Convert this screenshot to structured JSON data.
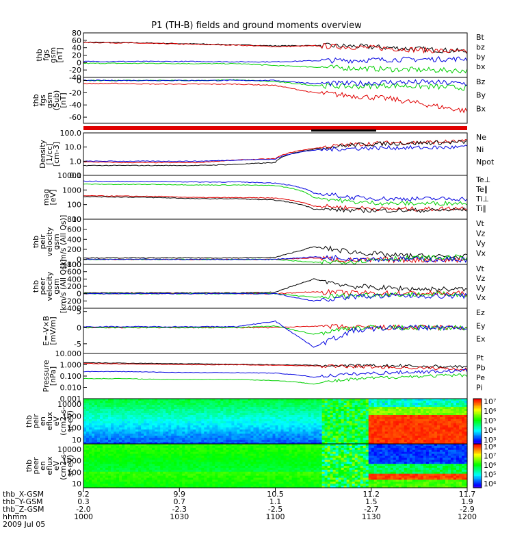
{
  "title": "P1 (TH-B) fields and ground moments overview",
  "colors": {
    "black": "#000000",
    "red": "#e00000",
    "green": "#00d000",
    "blue": "#0000e0"
  },
  "chart_data": [
    {
      "id": "fgs",
      "type": "line",
      "ylabel": [
        "thb",
        "fgs",
        "gsm",
        "[nT]"
      ],
      "yticks": [
        "80",
        "60",
        "40",
        "20",
        "0",
        "-20",
        "-40"
      ],
      "ylim": [
        -40,
        80
      ],
      "log": false,
      "series": [
        {
          "name": "Bt",
          "color": "black",
          "values": [
            55,
            54,
            52,
            50,
            48,
            45,
            46,
            44,
            40,
            35,
            30
          ]
        },
        {
          "name": "bz",
          "color": "red",
          "values": [
            54,
            53,
            51,
            49,
            47,
            43,
            45,
            42,
            38,
            33,
            28
          ]
        },
        {
          "name": "by",
          "color": "green",
          "values": [
            -2,
            -2,
            -2,
            -3,
            -3,
            -8,
            -12,
            -15,
            -18,
            -20,
            -22
          ]
        },
        {
          "name": "bx",
          "color": "blue",
          "values": [
            3,
            3,
            3,
            3,
            2,
            2,
            5,
            6,
            8,
            9,
            10
          ]
        }
      ]
    },
    {
      "id": "fgs_sm",
      "type": "line",
      "ylabel": [
        "thb",
        "fgs",
        "gsm",
        "(Sub)",
        "[nT]"
      ],
      "yticks": [
        "0",
        "-20",
        "-40",
        "-60"
      ],
      "ylim": [
        -70,
        5
      ],
      "log": false,
      "series": [
        {
          "name": "Bz",
          "color": "red",
          "values": [
            -5,
            -5,
            -6,
            -6,
            -6,
            -8,
            -20,
            -25,
            -30,
            -40,
            -50
          ]
        },
        {
          "name": "By",
          "color": "green",
          "values": [
            0,
            0,
            0,
            0,
            1,
            -2,
            -8,
            -10,
            -8,
            -10,
            -12
          ]
        },
        {
          "name": "Bx",
          "color": "blue",
          "values": [
            0,
            0,
            0,
            0,
            0,
            0,
            -5,
            -5,
            -3,
            -3,
            -5
          ]
        }
      ]
    },
    {
      "id": "density",
      "type": "line",
      "ylabel": [
        "Density",
        "[1/cc]",
        "[cm-3]"
      ],
      "yticks": [
        "100.0",
        "10.0",
        "1.0",
        "0.1"
      ],
      "ylim": [
        0.1,
        100
      ],
      "log": true,
      "series": [
        {
          "name": "Ne",
          "color": "red",
          "values": [
            0.9,
            0.8,
            0.8,
            0.8,
            1.2,
            1.5,
            8,
            15,
            20,
            22,
            25
          ]
        },
        {
          "name": "Ni",
          "color": "black",
          "values": [
            0.5,
            0.5,
            0.5,
            0.5,
            0.6,
            0.8,
            7,
            14,
            18,
            20,
            22
          ]
        },
        {
          "name": "Npot",
          "color": "blue",
          "values": [
            1.0,
            1.0,
            1.0,
            1.0,
            1.2,
            1.4,
            6,
            8,
            9,
            9,
            10
          ]
        }
      ]
    },
    {
      "id": "temp",
      "type": "line",
      "ylabel": [
        "mag",
        "[eV]"
      ],
      "yticks": [
        "10000",
        "1000",
        "100",
        "10"
      ],
      "ylim": [
        10,
        10000
      ],
      "log": true,
      "series": [
        {
          "name": "Te⊥",
          "color": "red",
          "values": [
            400,
            380,
            360,
            300,
            300,
            280,
            80,
            60,
            50,
            50,
            60
          ]
        },
        {
          "name": "Te∥",
          "color": "black",
          "values": [
            350,
            330,
            300,
            250,
            250,
            200,
            50,
            40,
            40,
            40,
            45
          ]
        },
        {
          "name": "Ti⊥",
          "color": "blue",
          "values": [
            4000,
            3800,
            3800,
            3500,
            3500,
            3000,
            600,
            300,
            250,
            250,
            250
          ]
        },
        {
          "name": "Ti∥",
          "color": "green",
          "values": [
            2500,
            2400,
            2400,
            2200,
            2200,
            2000,
            300,
            150,
            120,
            120,
            130
          ]
        }
      ]
    },
    {
      "id": "ion_vel",
      "type": "line",
      "ylabel": [
        "thb",
        "peir",
        "velocity",
        "gsm",
        "[km/s (All Qs)]"
      ],
      "yticks": [
        "800",
        "600",
        "400",
        "200",
        "0",
        "-100"
      ],
      "ylim": [
        -100,
        800
      ],
      "log": false,
      "series": [
        {
          "name": "Vt",
          "color": "black",
          "values": [
            30,
            30,
            30,
            30,
            30,
            40,
            250,
            150,
            80,
            60,
            50
          ]
        },
        {
          "name": "Vz",
          "color": "red",
          "values": [
            0,
            0,
            0,
            0,
            0,
            0,
            30,
            -20,
            -10,
            -10,
            -10
          ]
        },
        {
          "name": "Vy",
          "color": "green",
          "values": [
            0,
            0,
            0,
            0,
            0,
            0,
            -60,
            -40,
            20,
            30,
            40
          ]
        },
        {
          "name": "Vx",
          "color": "blue",
          "values": [
            0,
            0,
            0,
            0,
            0,
            0,
            50,
            20,
            5,
            0,
            0
          ]
        }
      ]
    },
    {
      "id": "ele_vel",
      "type": "line",
      "ylabel": [
        "thb",
        "peer",
        "velocity",
        "gsm",
        "[km/s (All Qs)]"
      ],
      "yticks": [
        "800",
        "600",
        "400",
        "200",
        "0",
        "-200",
        "-400"
      ],
      "ylim": [
        -400,
        800
      ],
      "log": false,
      "series": [
        {
          "name": "Vt",
          "color": "black",
          "values": [
            20,
            20,
            20,
            20,
            20,
            40,
            400,
            200,
            150,
            120,
            120
          ]
        },
        {
          "name": "Vz",
          "color": "red",
          "values": [
            0,
            0,
            0,
            0,
            0,
            0,
            50,
            20,
            10,
            5,
            5
          ]
        },
        {
          "name": "Vy",
          "color": "green",
          "values": [
            0,
            0,
            0,
            0,
            0,
            0,
            -100,
            -50,
            -20,
            -20,
            -20
          ]
        },
        {
          "name": "Vx",
          "color": "blue",
          "values": [
            0,
            0,
            0,
            0,
            0,
            0,
            -200,
            -80,
            -60,
            -60,
            -60
          ]
        }
      ]
    },
    {
      "id": "efield",
      "type": "line",
      "ylabel": [
        "E=-V×B",
        "[mV/m]"
      ],
      "yticks": [
        "5",
        "0",
        "-5"
      ],
      "ylim": [
        -8,
        6
      ],
      "log": false,
      "series": [
        {
          "name": "Ez",
          "color": "red",
          "values": [
            0,
            0,
            0,
            0,
            0,
            0,
            0.5,
            0,
            0,
            0,
            0
          ]
        },
        {
          "name": "Ey",
          "color": "green",
          "values": [
            0,
            0,
            0,
            0,
            0,
            0.5,
            -2,
            0,
            0,
            0,
            0
          ]
        },
        {
          "name": "Ex",
          "color": "blue",
          "values": [
            0.3,
            0.3,
            0.3,
            0.3,
            0.3,
            2,
            -6,
            -1,
            0,
            0,
            0
          ]
        }
      ]
    },
    {
      "id": "pressure",
      "type": "line",
      "ylabel": [
        "Pressure",
        "[nPa]"
      ],
      "yticks": [
        "10.000",
        "1.000",
        "0.100",
        "0.010",
        "0.001"
      ],
      "ylim": [
        0.001,
        10
      ],
      "log": true,
      "series": [
        {
          "name": "Pt",
          "color": "black",
          "values": [
            1.5,
            1.4,
            1.3,
            1.2,
            1.1,
            1.0,
            0.9,
            0.8,
            0.8,
            0.7,
            0.7
          ]
        },
        {
          "name": "Pb",
          "color": "red",
          "values": [
            1.3,
            1.2,
            1.1,
            1.0,
            1.0,
            0.9,
            0.8,
            0.7,
            0.6,
            0.5,
            0.4
          ]
        },
        {
          "name": "Pe",
          "color": "green",
          "values": [
            0.06,
            0.06,
            0.05,
            0.05,
            0.05,
            0.04,
            0.02,
            0.05,
            0.08,
            0.1,
            0.12
          ]
        },
        {
          "name": "Pi",
          "color": "blue",
          "values": [
            0.25,
            0.25,
            0.22,
            0.2,
            0.2,
            0.18,
            0.08,
            0.15,
            0.2,
            0.25,
            0.3
          ]
        }
      ]
    },
    {
      "id": "ion_spec",
      "type": "heatmap",
      "ylabel": [
        "thb",
        "peir",
        "en",
        "eflux",
        "eV",
        "(cm2-s-",
        "sr-eV)"
      ],
      "yticks": [
        "10000",
        "1000",
        "100",
        "10"
      ],
      "colorbar": [
        "10⁷",
        "10⁶",
        "10⁵",
        "10⁴",
        "10³"
      ]
    },
    {
      "id": "ele_spec",
      "type": "heatmap",
      "ylabel": [
        "thb",
        "peer",
        "en",
        "eflux",
        "eV",
        "(cm2-s-",
        "sr-eV)"
      ],
      "yticks": [
        "10000",
        "1000",
        "100",
        "10"
      ],
      "colorbar": [
        "10⁸",
        "10⁷",
        "10⁶",
        "10⁵",
        "10⁴"
      ]
    }
  ],
  "x": {
    "rows": [
      {
        "label": "thb_X-GSM",
        "values": [
          "9.2",
          "9.9",
          "10.5",
          "11.2",
          "11.7"
        ]
      },
      {
        "label": "thb_Y-GSM",
        "values": [
          "0.3",
          "0.7",
          "1.1",
          "1.5",
          "1.9"
        ]
      },
      {
        "label": "thb_Z-GSM",
        "values": [
          "-2.0",
          "-2.3",
          "-2.5",
          "-2.7",
          "-2.9"
        ]
      },
      {
        "label": "hhmm",
        "values": [
          "1000",
          "1030",
          "1100",
          "1130",
          "1200"
        ]
      }
    ],
    "date": "2009 Jul 05"
  }
}
